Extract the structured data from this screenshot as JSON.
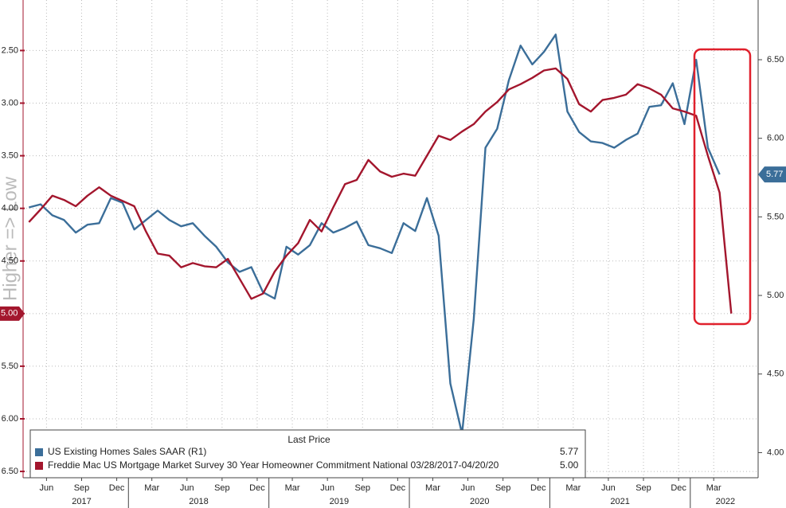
{
  "chart_data": {
    "type": "line",
    "axis_label": "Higher => Low",
    "x": [
      "2017-04",
      "2017-05",
      "2017-06",
      "2017-07",
      "2017-08",
      "2017-09",
      "2017-10",
      "2017-11",
      "2017-12",
      "2018-01",
      "2018-02",
      "2018-03",
      "2018-04",
      "2018-05",
      "2018-06",
      "2018-07",
      "2018-08",
      "2018-09",
      "2018-10",
      "2018-11",
      "2018-12",
      "2019-01",
      "2019-02",
      "2019-03",
      "2019-04",
      "2019-05",
      "2019-06",
      "2019-07",
      "2019-08",
      "2019-09",
      "2019-10",
      "2019-11",
      "2019-12",
      "2020-01",
      "2020-02",
      "2020-03",
      "2020-04",
      "2020-05",
      "2020-06",
      "2020-07",
      "2020-08",
      "2020-09",
      "2020-10",
      "2020-11",
      "2020-12",
      "2021-01",
      "2021-02",
      "2021-03",
      "2021-04",
      "2021-05",
      "2021-06",
      "2021-07",
      "2021-08",
      "2021-09",
      "2021-10",
      "2021-11",
      "2021-12",
      "2022-01",
      "2022-02",
      "2022-03",
      "2022-04"
    ],
    "xlim": [
      "2017-04",
      "2022-07"
    ],
    "xticks": [
      {
        "value": "2017-06",
        "label": "Jun"
      },
      {
        "value": "2017-09",
        "label": "Sep"
      },
      {
        "value": "2017-12",
        "label": "Dec"
      },
      {
        "value": "2018-03",
        "label": "Mar"
      },
      {
        "value": "2018-06",
        "label": "Jun"
      },
      {
        "value": "2018-09",
        "label": "Sep"
      },
      {
        "value": "2018-12",
        "label": "Dec"
      },
      {
        "value": "2019-03",
        "label": "Mar"
      },
      {
        "value": "2019-06",
        "label": "Jun"
      },
      {
        "value": "2019-09",
        "label": "Sep"
      },
      {
        "value": "2019-12",
        "label": "Dec"
      },
      {
        "value": "2020-03",
        "label": "Mar"
      },
      {
        "value": "2020-06",
        "label": "Jun"
      },
      {
        "value": "2020-09",
        "label": "Sep"
      },
      {
        "value": "2020-12",
        "label": "Dec"
      },
      {
        "value": "2021-03",
        "label": "Mar"
      },
      {
        "value": "2021-06",
        "label": "Jun"
      },
      {
        "value": "2021-09",
        "label": "Sep"
      },
      {
        "value": "2021-12",
        "label": "Dec"
      },
      {
        "value": "2022-03",
        "label": "Mar"
      }
    ],
    "year_labels": [
      {
        "value": "2017-09",
        "label": "2017"
      },
      {
        "value": "2018-07",
        "label": "2018"
      },
      {
        "value": "2019-07",
        "label": "2019"
      },
      {
        "value": "2020-07",
        "label": "2020"
      },
      {
        "value": "2021-07",
        "label": "2021"
      },
      {
        "value": "2022-04",
        "label": "2022"
      }
    ],
    "ylim": [
      6.56,
      2.02
    ],
    "yticks": [
      {
        "value": 2.5,
        "label": "2.50"
      },
      {
        "value": 3,
        "label": "3.00"
      },
      {
        "value": 3.5,
        "label": "3.50"
      },
      {
        "value": 4,
        "label": "4.00"
      },
      {
        "value": 4.5,
        "label": "4.50"
      },
      {
        "value": 5,
        "label": "5.00"
      },
      {
        "value": 5.5,
        "label": "5.50"
      },
      {
        "value": 6,
        "label": "6.00"
      },
      {
        "value": 6.5,
        "label": "6.50"
      }
    ],
    "y2lim": [
      3.84,
      6.88
    ],
    "y2ticks": [
      {
        "value": 4,
        "label": "4.00"
      },
      {
        "value": 4.5,
        "label": "4.50"
      },
      {
        "value": 5,
        "label": "5.00"
      },
      {
        "value": 5.5,
        "label": "5.50"
      },
      {
        "value": 6,
        "label": "6.00"
      },
      {
        "value": 6.5,
        "label": "6.50"
      }
    ],
    "grid": true,
    "legend_title": "Last Price",
    "series": [
      {
        "name": "US Existing Homes Sales SAAR  (R1)",
        "color": "#3b6e99",
        "axis": "y2",
        "last_price": {
          "value": 5.77,
          "label": "5.77"
        },
        "values": [
          5.56,
          5.58,
          5.51,
          5.48,
          5.4,
          5.45,
          5.46,
          5.62,
          5.59,
          5.42,
          5.48,
          5.54,
          5.48,
          5.44,
          5.46,
          5.38,
          5.31,
          5.21,
          5.15,
          5.18,
          5.02,
          4.98,
          5.31,
          5.26,
          5.32,
          5.46,
          5.4,
          5.43,
          5.47,
          5.32,
          5.3,
          5.27,
          5.46,
          5.41,
          5.62,
          5.38,
          4.44,
          4.12,
          4.85,
          5.94,
          6.06,
          6.37,
          6.59,
          6.47,
          6.55,
          6.66,
          6.17,
          6.04,
          5.98,
          5.97,
          5.94,
          5.99,
          6.03,
          6.2,
          6.21,
          6.35,
          6.09,
          6.5,
          5.94,
          5.77,
          null
        ]
      },
      {
        "name": "Freddie Mac US Mortgage Market Survey 30 Year Homeowner Commitment National 03/28/2017-04/20/20",
        "color": "#a3162d",
        "last_price": {
          "value": 5,
          "label": "5.00"
        },
        "values": [
          4.13,
          4.01,
          3.88,
          3.92,
          3.98,
          3.88,
          3.8,
          3.88,
          3.93,
          3.98,
          4.22,
          4.43,
          4.45,
          4.56,
          4.52,
          4.55,
          4.56,
          4.48,
          4.67,
          4.86,
          4.81,
          4.6,
          4.45,
          4.33,
          4.11,
          4.22,
          3.99,
          3.77,
          3.73,
          3.54,
          3.65,
          3.7,
          3.67,
          3.69,
          3.5,
          3.31,
          3.35,
          3.27,
          3.2,
          3.08,
          2.99,
          2.87,
          2.82,
          2.76,
          2.69,
          2.67,
          2.77,
          3.01,
          3.08,
          2.97,
          2.95,
          2.92,
          2.82,
          2.86,
          2.92,
          3.05,
          3.08,
          3.12,
          3.5,
          3.85,
          5.0
        ]
      }
    ]
  }
}
